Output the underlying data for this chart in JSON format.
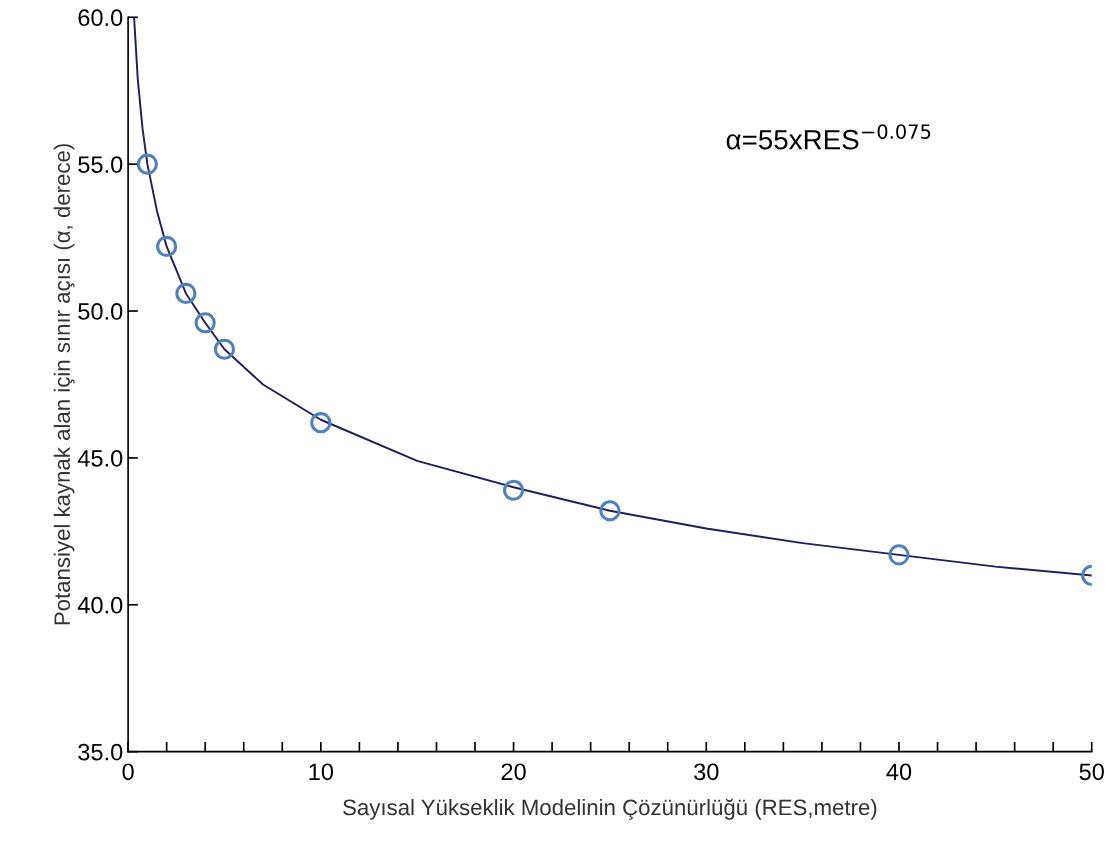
{
  "chart_data": {
    "type": "scatter",
    "xlabel": "Sayısal Yükseklik Modelinin Çözünürlüğü (RES,metre)",
    "ylabel": "Potansiyel kaynak alan için sınır açısı (α, derece)",
    "annotations": [
      "α=55xRES$^{−0.075}$"
    ],
    "series": [
      {
        "type": "line",
        "color": "#1f1f5f",
        "x": [
          0.31,
          0.5,
          0.75,
          1,
          1.5,
          2,
          3,
          4,
          5,
          7,
          10,
          15,
          20,
          25,
          30,
          35,
          40,
          45,
          50
        ],
        "values": [
          60.0,
          57.9,
          56.2,
          55.0,
          53.4,
          52.2,
          50.6,
          49.6,
          48.7,
          47.5,
          46.3,
          44.9,
          44.0,
          43.2,
          42.6,
          42.1,
          41.7,
          41.3,
          41.0
        ],
        "marker": "none",
        "line_style": "solid"
      },
      {
        "color": "#4f81bd",
        "x": [
          1,
          2,
          3,
          4,
          5,
          10,
          20,
          25,
          40,
          50
        ],
        "values": [
          55.0,
          52.2,
          50.6,
          49.6,
          48.7,
          46.2,
          43.9,
          43.2,
          41.7,
          41.0
        ],
        "marker": "circle"
      }
    ],
    "xlim": [
      0,
      50
    ],
    "ylim": [
      35,
      60
    ],
    "xticks": [
      0,
      {
        "value": 2,
        "label": null
      },
      {
        "value": 4,
        "label": null
      },
      {
        "value": 6,
        "label": null
      },
      {
        "value": 8,
        "label": null
      },
      10,
      {
        "value": 12,
        "label": null
      },
      {
        "value": 14,
        "label": null
      },
      {
        "value": 16,
        "label": null
      },
      {
        "value": 18,
        "label": null
      },
      20,
      {
        "value": 22,
        "label": null
      },
      {
        "value": 24,
        "label": null
      },
      {
        "value": 26,
        "label": null
      },
      {
        "value": 28,
        "label": null
      },
      30,
      {
        "value": 32,
        "label": null
      },
      {
        "value": 34,
        "label": null
      },
      {
        "value": 36,
        "label": null
      },
      {
        "value": 38,
        "label": null
      },
      40,
      {
        "value": 42,
        "label": null
      },
      {
        "value": 44,
        "label": null
      },
      {
        "value": 46,
        "label": null
      },
      {
        "value": 48,
        "label": null
      },
      50
    ],
    "yticks": [
      {
        "value": 35,
        "label": "35.0"
      },
      {
        "value": 40,
        "label": "40.0"
      },
      {
        "value": 45,
        "label": "45.0"
      },
      {
        "value": 50,
        "label": "50.0"
      },
      {
        "value": 55,
        "label": "55.0"
      },
      {
        "value": 60,
        "label": "60.0"
      }
    ],
    "grid": false
  }
}
